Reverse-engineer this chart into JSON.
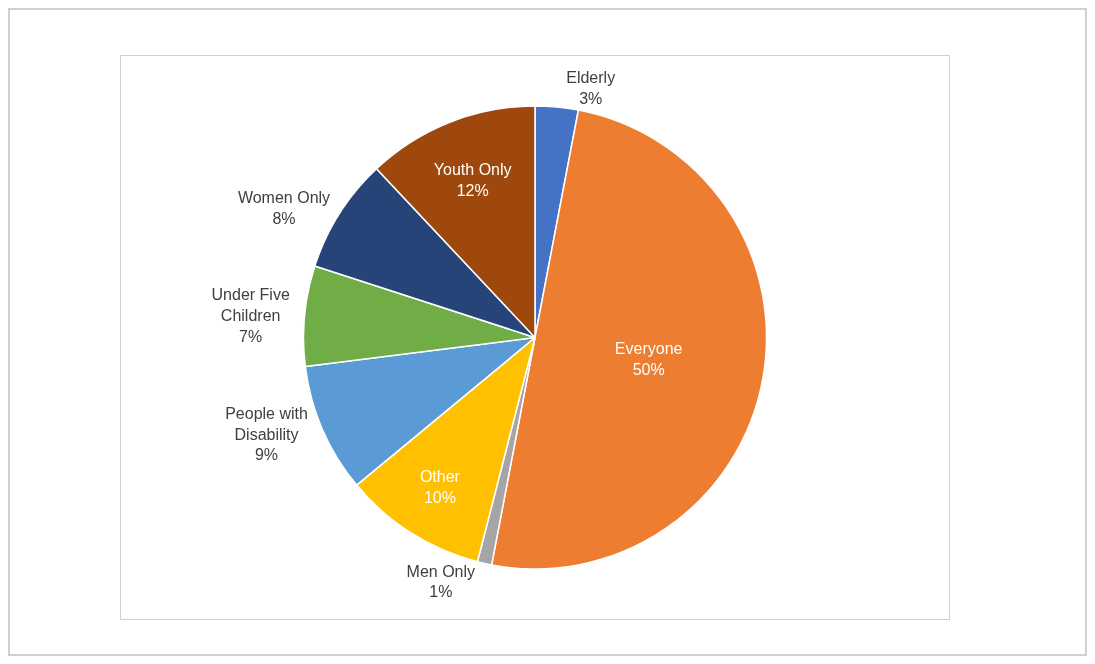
{
  "chart_data": {
    "type": "pie",
    "categories": [
      "Elderly",
      "Everyone",
      "Men Only",
      "Other",
      "People with Disability",
      "Under Five Children",
      "Women Only",
      "Youth Only"
    ],
    "values": [
      3,
      50,
      1,
      10,
      9,
      7,
      8,
      12
    ],
    "value_labels": [
      "3%",
      "50%",
      "1%",
      "10%",
      "9%",
      "7%",
      "8%",
      "12%"
    ],
    "colors": [
      "#4472c4",
      "#ed7d31",
      "#a5a5a5",
      "#ffc000",
      "#5b9bd5",
      "#70ad47",
      "#264478",
      "#9e480e"
    ],
    "legend": false
  }
}
